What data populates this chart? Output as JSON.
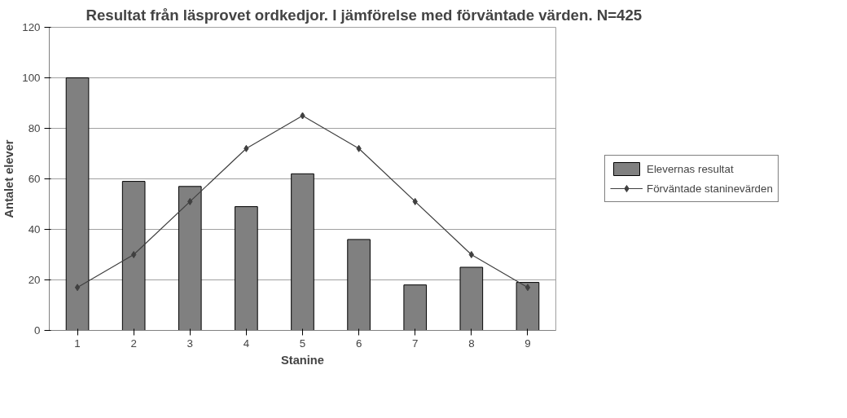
{
  "chart_data": {
    "type": "bar",
    "title": "Resultat från läsprovet ordkedjor. I jämförelse med förväntade värden. N=425",
    "xlabel": "Stanine",
    "ylabel": "Antalet elever",
    "categories": [
      "1",
      "2",
      "3",
      "4",
      "5",
      "6",
      "7",
      "8",
      "9"
    ],
    "series": [
      {
        "name": "Elevernas resultat",
        "color": "#808080",
        "values": [
          100,
          59,
          57,
          49,
          62,
          36,
          18,
          25,
          19
        ]
      },
      {
        "name": "Förväntade staninevärden",
        "type": "line",
        "color": "#404040",
        "marker": "diamond",
        "values": [
          17,
          30,
          51,
          72,
          85,
          72,
          51,
          30,
          17
        ]
      }
    ],
    "ylim": [
      0,
      120
    ],
    "yticks": [
      0,
      20,
      40,
      60,
      80,
      100,
      120
    ],
    "grid": "y",
    "legend": "right"
  }
}
